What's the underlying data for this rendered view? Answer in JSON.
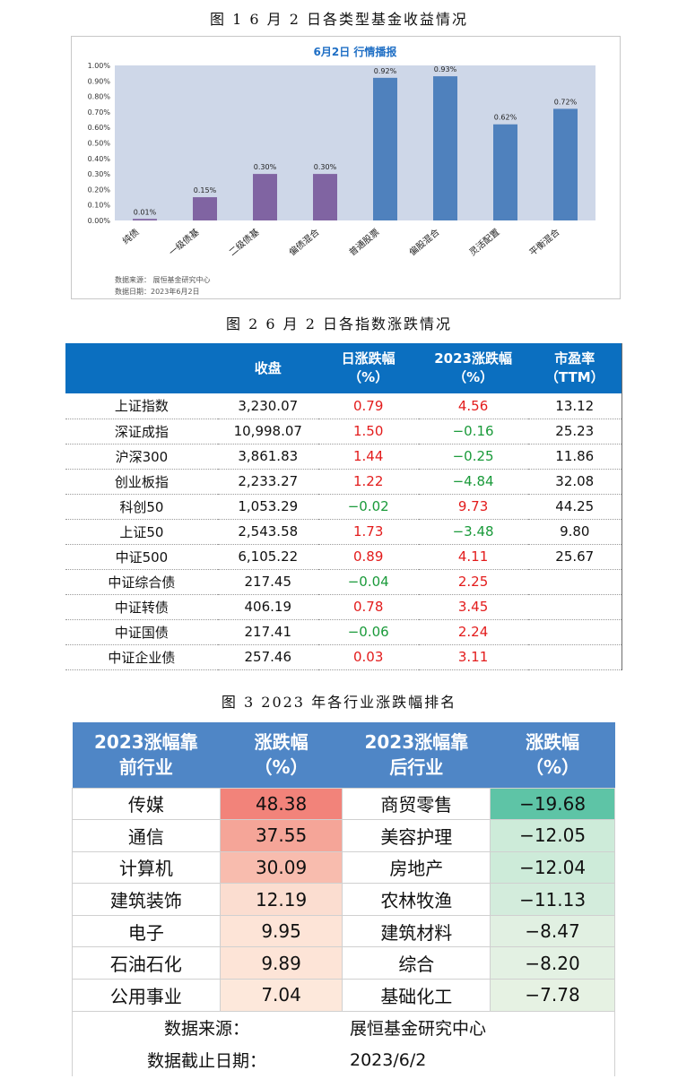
{
  "captions": {
    "fig1": "图 1   6 月 2 日各类型基金收益情况",
    "fig2": "图 2   6 月 2 日各指数涨跌情况",
    "fig3": "图 3   2023 年各行业涨跌幅排名"
  },
  "chart_data": {
    "type": "bar",
    "title": "6月2日  行情播报",
    "categories": [
      "纯债",
      "一级债基",
      "二级债基",
      "偏债混合",
      "普通股票",
      "偏股混合",
      "灵活配置",
      "平衡混合"
    ],
    "values": [
      0.01,
      0.15,
      0.3,
      0.3,
      0.92,
      0.93,
      0.62,
      0.72
    ],
    "value_labels": [
      "0.01%",
      "0.15%",
      "0.30%",
      "0.30%",
      "0.92%",
      "0.93%",
      "0.62%",
      "0.72%"
    ],
    "ylim": [
      0,
      1.0
    ],
    "yticks": [
      "0.00%",
      "0.10%",
      "0.20%",
      "0.30%",
      "0.40%",
      "0.50%",
      "0.60%",
      "0.70%",
      "0.80%",
      "0.90%",
      "1.00%"
    ],
    "bar_colors": [
      "#8064a2",
      "#8064a2",
      "#8064a2",
      "#8064a2",
      "#4f81bd",
      "#4f81bd",
      "#4f81bd",
      "#4f81bd"
    ],
    "grid": false,
    "plot_background": "#ced7e8",
    "title_color": "#1f6fc5",
    "source_line1": "数据来源：  展恒基金研究中心",
    "source_line2": "数据日期：2023年6月2日"
  },
  "index_table": {
    "headers": [
      "",
      "收盘",
      "日涨跌幅\n（%）",
      "2023涨跌幅\n（%）",
      "市盈率\n（TTM）"
    ],
    "header_color": "#0b6fc0",
    "rows": [
      {
        "name": "上证指数",
        "close": "3,230.07",
        "day": "0.79",
        "day_c": "red",
        "ytd": "4.56",
        "ytd_c": "red",
        "pe": "13.12"
      },
      {
        "name": "深证成指",
        "close": "10,998.07",
        "day": "1.50",
        "day_c": "red",
        "ytd": "−0.16",
        "ytd_c": "green",
        "pe": "25.23"
      },
      {
        "name": "沪深300",
        "close": "3,861.83",
        "day": "1.44",
        "day_c": "red",
        "ytd": "−0.25",
        "ytd_c": "green",
        "pe": "11.86"
      },
      {
        "name": "创业板指",
        "close": "2,233.27",
        "day": "1.22",
        "day_c": "red",
        "ytd": "−4.84",
        "ytd_c": "green",
        "pe": "32.08"
      },
      {
        "name": "科创50",
        "close": "1,053.29",
        "day": "−0.02",
        "day_c": "green",
        "ytd": "9.73",
        "ytd_c": "red",
        "pe": "44.25"
      },
      {
        "name": "上证50",
        "close": "2,543.58",
        "day": "1.73",
        "day_c": "red",
        "ytd": "−3.48",
        "ytd_c": "green",
        "pe": "9.80"
      },
      {
        "name": "中证500",
        "close": "6,105.22",
        "day": "0.89",
        "day_c": "red",
        "ytd": "4.11",
        "ytd_c": "red",
        "pe": "25.67"
      },
      {
        "name": "中证综合债",
        "close": "217.45",
        "day": "−0.04",
        "day_c": "green",
        "ytd": "2.25",
        "ytd_c": "red",
        "pe": ""
      },
      {
        "name": "中证转债",
        "close": "406.19",
        "day": "0.78",
        "day_c": "red",
        "ytd": "3.45",
        "ytd_c": "red",
        "pe": ""
      },
      {
        "name": "中证国债",
        "close": "217.41",
        "day": "−0.06",
        "day_c": "green",
        "ytd": "2.24",
        "ytd_c": "red",
        "pe": ""
      },
      {
        "name": "中证企业债",
        "close": "257.46",
        "day": "0.03",
        "day_c": "red",
        "ytd": "3.11",
        "ytd_c": "red",
        "pe": ""
      }
    ]
  },
  "industry_table": {
    "headers": [
      "2023涨幅靠\n前行业",
      "涨跌幅\n（%）",
      "2023涨幅靠\n后行业",
      "涨跌幅\n（%）"
    ],
    "header_color": "#4f86c6",
    "rows": [
      {
        "top": "传媒",
        "top_v": "48.38",
        "top_bg": "#f2837a",
        "bottom": "商贸零售",
        "bottom_v": "−19.68",
        "bottom_bg": "#5ec4a6"
      },
      {
        "top": "通信",
        "top_v": "37.55",
        "top_bg": "#f5a598",
        "bottom": "美容护理",
        "bottom_v": "−12.05",
        "bottom_bg": "#cdebd9"
      },
      {
        "top": "计算机",
        "top_v": "30.09",
        "top_bg": "#f8bcae",
        "bottom": "房地产",
        "bottom_v": "−12.04",
        "bottom_bg": "#cdebd9"
      },
      {
        "top": "建筑装饰",
        "top_v": "12.19",
        "top_bg": "#fbddd0",
        "bottom": "农林牧渔",
        "bottom_v": "−11.13",
        "bottom_bg": "#d3ecdc"
      },
      {
        "top": "电子",
        "top_v": "9.95",
        "top_bg": "#fde4d7",
        "bottom": "建筑材料",
        "bottom_v": "−8.47",
        "bottom_bg": "#e1f0e2"
      },
      {
        "top": "石油石化",
        "top_v": "9.89",
        "top_bg": "#fde4d7",
        "bottom": "综合",
        "bottom_v": "−8.20",
        "bottom_bg": "#e3f1e3"
      },
      {
        "top": "公用事业",
        "top_v": "7.04",
        "top_bg": "#fde8db",
        "bottom": "基础化工",
        "bottom_v": "−7.78",
        "bottom_bg": "#e6f2e3"
      }
    ],
    "footer": [
      {
        "key": "数据来源：",
        "value": "展恒基金研究中心"
      },
      {
        "key": "数据截止日期：",
        "value": "2023/6/2"
      }
    ]
  }
}
